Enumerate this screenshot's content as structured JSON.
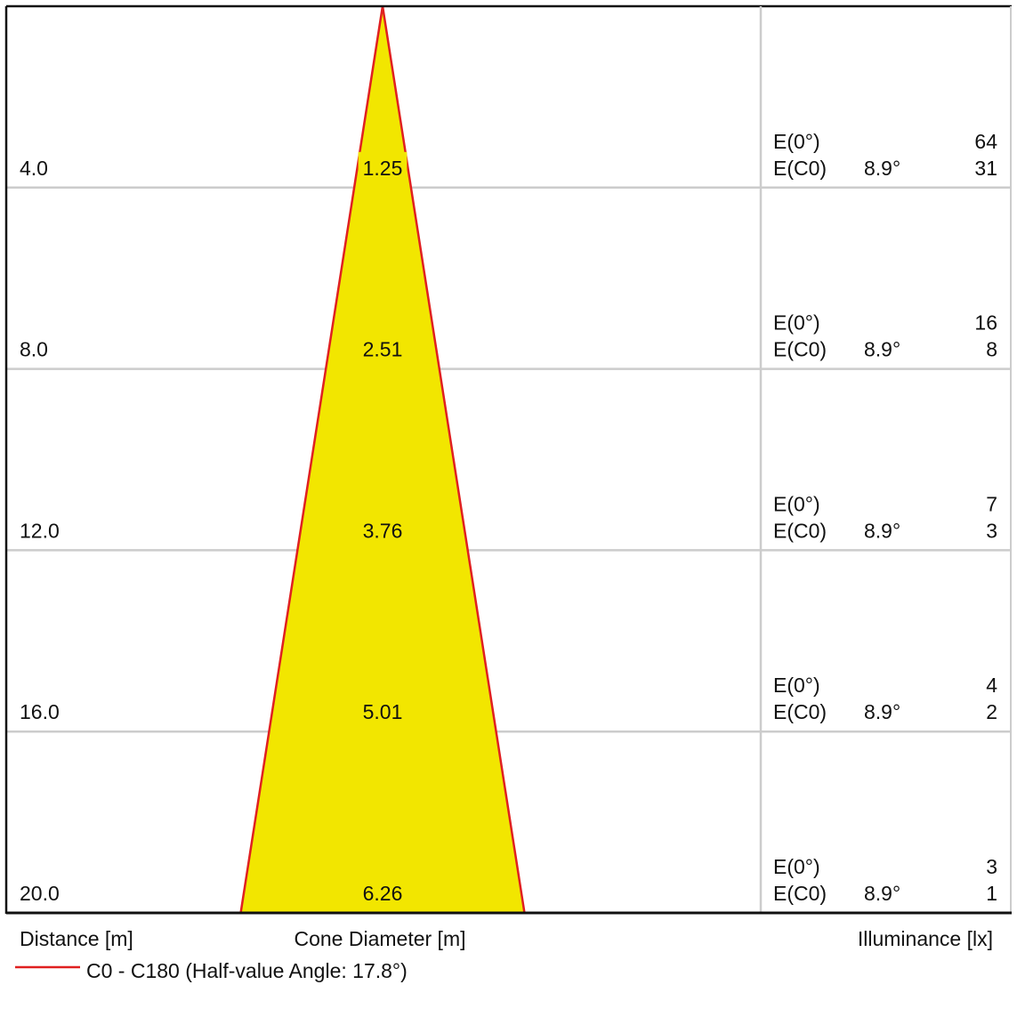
{
  "chart_data": {
    "type": "cone-diagram",
    "columns": {
      "distance_label": "Distance [m]",
      "diameter_label": "Cone Diameter [m]",
      "illuminance_label": "Illuminance [lx]"
    },
    "legend": {
      "label": "C0 - C180 (Half-value Angle: 17.8°)",
      "color": "#e02020",
      "placement": "bottom-left"
    },
    "half_value_angle_deg": 17.8,
    "distance_range": [
      0,
      20
    ],
    "fill_color": "#f2e600",
    "grid": true,
    "rows": [
      {
        "distance": "4.0",
        "diameter": "1.25",
        "e0_label": "E(0°)",
        "e0": "64",
        "ec0_label": "E(C0)",
        "angle": "8.9°",
        "ec0": "31"
      },
      {
        "distance": "8.0",
        "diameter": "2.51",
        "e0_label": "E(0°)",
        "e0": "16",
        "ec0_label": "E(C0)",
        "angle": "8.9°",
        "ec0": "8"
      },
      {
        "distance": "12.0",
        "diameter": "3.76",
        "e0_label": "E(0°)",
        "e0": "7",
        "ec0_label": "E(C0)",
        "angle": "8.9°",
        "ec0": "3"
      },
      {
        "distance": "16.0",
        "diameter": "5.01",
        "e0_label": "E(0°)",
        "e0": "4",
        "ec0_label": "E(C0)",
        "angle": "8.9°",
        "ec0": "2"
      },
      {
        "distance": "20.0",
        "diameter": "6.26",
        "e0_label": "E(0°)",
        "e0": "3",
        "ec0_label": "E(C0)",
        "angle": "8.9°",
        "ec0": "1"
      }
    ]
  }
}
